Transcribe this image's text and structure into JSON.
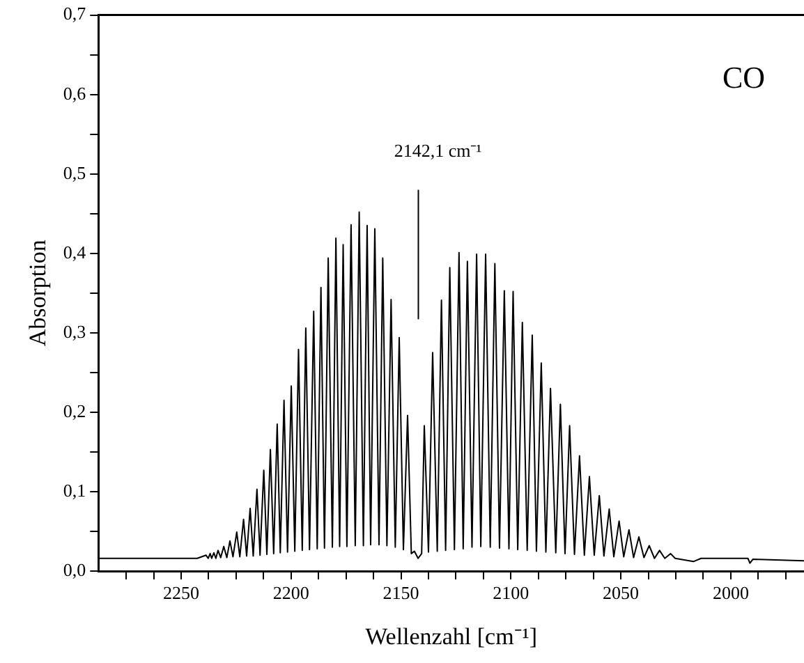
{
  "chart_data": {
    "type": "line",
    "xlabel": "Wellenzahl [cm⁻¹]",
    "ylabel": "Absorption",
    "xlim": [
      2287.6,
      1966.7
    ],
    "ylim": [
      0,
      0.7
    ],
    "xticks": [
      {
        "value": 2275,
        "label": null
      },
      {
        "value": 2262.5,
        "label": null
      },
      2250,
      {
        "value": 2237.5,
        "label": null
      },
      {
        "value": 2225,
        "label": null
      },
      {
        "value": 2212.5,
        "label": null
      },
      2200,
      {
        "value": 2187.5,
        "label": null
      },
      {
        "value": 2175,
        "label": null
      },
      {
        "value": 2162.5,
        "label": null
      },
      2150,
      {
        "value": 2137.5,
        "label": null
      },
      {
        "value": 2125,
        "label": null
      },
      {
        "value": 2112.5,
        "label": null
      },
      2100,
      {
        "value": 2087.5,
        "label": null
      },
      {
        "value": 2075,
        "label": null
      },
      {
        "value": 2062.5,
        "label": null
      },
      2050,
      {
        "value": 2037.5,
        "label": null
      },
      {
        "value": 2025,
        "label": null
      },
      {
        "value": 2012.5,
        "label": null
      },
      2000,
      {
        "value": 1987.5,
        "label": null
      },
      {
        "value": 1975,
        "label": null
      }
    ],
    "yticks": [
      {
        "value": 0,
        "label": "0,0"
      },
      {
        "value": 0.05,
        "label": null
      },
      {
        "value": 0.1,
        "label": "0,1"
      },
      {
        "value": 0.15,
        "label": null
      },
      {
        "value": 0.2,
        "label": "0,2"
      },
      {
        "value": 0.25,
        "label": null
      },
      {
        "value": 0.3,
        "label": "0,3"
      },
      {
        "value": 0.35,
        "label": null
      },
      {
        "value": 0.4,
        "label": "0,4"
      },
      {
        "value": 0.45,
        "label": null
      },
      {
        "value": 0.5,
        "label": "0,5"
      },
      {
        "value": 0.55,
        "label": null
      },
      {
        "value": 0.6,
        "label": "0,6"
      },
      {
        "value": 0.65,
        "label": null
      },
      {
        "value": 0.7,
        "label": "0,7"
      }
    ],
    "grid": false,
    "legend": false,
    "marker": "none",
    "line_style": "solid",
    "annotations": [
      "CO",
      {
        "text": "2142,1 cm⁻¹",
        "x": 2142.1,
        "y": 0.48
      }
    ],
    "series": [
      {
        "color": "#000000",
        "x": [
          2287.6,
          2242.7,
          2238.7,
          2237.7,
          2236.8,
          2236.1,
          2235.1,
          2234.2,
          2233.2,
          2232.0,
          2230.6,
          2229.2,
          2227.8,
          2226.4,
          2224.7,
          2223.3,
          2221.6,
          2220.2,
          2218.6,
          2217.2,
          2215.5,
          2214.1,
          2212.4,
          2211.0,
          2209.4,
          2207.9,
          2206.3,
          2204.9,
          2203.2,
          2201.6,
          2199.9,
          2198.3,
          2196.6,
          2194.9,
          2193.3,
          2191.6,
          2189.7,
          2188.1,
          2186.4,
          2184.8,
          2183.1,
          2181.2,
          2179.6,
          2177.9,
          2176.3,
          2174.6,
          2172.7,
          2170.8,
          2169.0,
          2167.1,
          2165.4,
          2163.8,
          2161.9,
          2160.0,
          2158.3,
          2156.4,
          2154.5,
          2152.6,
          2150.8,
          2148.9,
          2147.0,
          2145.3,
          2143.9,
          2142.2,
          2140.6,
          2139.4,
          2137.5,
          2135.6,
          2133.5,
          2131.6,
          2129.7,
          2127.8,
          2125.7,
          2123.6,
          2121.7,
          2119.8,
          2117.7,
          2115.6,
          2113.7,
          2111.5,
          2109.4,
          2107.3,
          2105.2,
          2103.0,
          2100.9,
          2099.0,
          2096.9,
          2094.8,
          2092.6,
          2090.3,
          2088.4,
          2086.2,
          2084.1,
          2082.0,
          2079.6,
          2077.5,
          2075.4,
          2073.3,
          2071.1,
          2068.8,
          2066.6,
          2064.3,
          2062.1,
          2059.8,
          2057.7,
          2055.3,
          2053.2,
          2050.8,
          2048.7,
          2046.3,
          2044.2,
          2041.8,
          2039.5,
          2037.1,
          2034.7,
          2032.4,
          2030.0,
          2027.4,
          2025.3,
          2017.0,
          2013.5,
          1992.2,
          1991.3,
          1989.9,
          1966.7
        ],
        "values": [
          0.016,
          0.016,
          0.02,
          0.016,
          0.022,
          0.016,
          0.023,
          0.016,
          0.026,
          0.017,
          0.031,
          0.017,
          0.038,
          0.018,
          0.049,
          0.018,
          0.065,
          0.019,
          0.079,
          0.019,
          0.103,
          0.02,
          0.127,
          0.021,
          0.153,
          0.022,
          0.185,
          0.023,
          0.215,
          0.024,
          0.233,
          0.025,
          0.279,
          0.026,
          0.306,
          0.027,
          0.327,
          0.028,
          0.357,
          0.029,
          0.394,
          0.03,
          0.419,
          0.031,
          0.411,
          0.031,
          0.436,
          0.032,
          0.452,
          0.032,
          0.435,
          0.033,
          0.431,
          0.033,
          0.394,
          0.032,
          0.342,
          0.03,
          0.294,
          0.027,
          0.196,
          0.022,
          0.025,
          0.016,
          0.022,
          0.183,
          0.024,
          0.275,
          0.025,
          0.341,
          0.026,
          0.382,
          0.027,
          0.401,
          0.028,
          0.39,
          0.03,
          0.399,
          0.031,
          0.399,
          0.03,
          0.387,
          0.029,
          0.353,
          0.028,
          0.352,
          0.027,
          0.313,
          0.026,
          0.297,
          0.025,
          0.262,
          0.024,
          0.23,
          0.023,
          0.21,
          0.022,
          0.183,
          0.021,
          0.145,
          0.02,
          0.119,
          0.02,
          0.095,
          0.019,
          0.078,
          0.018,
          0.063,
          0.018,
          0.052,
          0.017,
          0.043,
          0.017,
          0.032,
          0.016,
          0.026,
          0.016,
          0.022,
          0.016,
          0.012,
          0.016,
          0.016,
          0.01,
          0.015,
          0.013
        ]
      },
      {
        "color": "#000000",
        "x": [
          2142.1,
          2142.1
        ],
        "values": [
          0.317,
          0.48
        ]
      }
    ]
  }
}
